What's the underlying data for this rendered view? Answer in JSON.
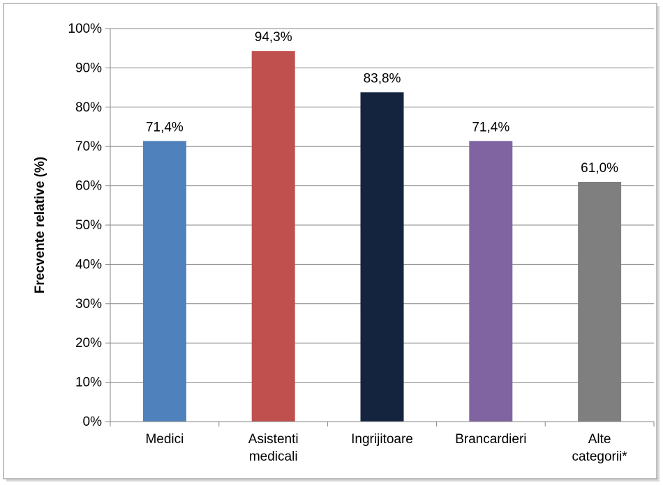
{
  "chart_data": {
    "type": "bar",
    "categories": [
      [
        "Medici"
      ],
      [
        "Asistenti",
        "medicali"
      ],
      [
        "Ingrijitoare"
      ],
      [
        "Brancardieri"
      ],
      [
        "Alte",
        "categorii*"
      ]
    ],
    "values": [
      71.4,
      94.3,
      83.8,
      71.4,
      61.0
    ],
    "data_labels": [
      "71,4%",
      "94,3%",
      "83,8%",
      "71,4%",
      "61,0%"
    ],
    "colors": [
      "#4F81BD",
      "#C0504D",
      "#14243F",
      "#8064A2",
      "#7F7F7F"
    ],
    "ylabel": "Frecvente relative (%)",
    "ylim": [
      0,
      100
    ],
    "yticks": [
      0,
      10,
      20,
      30,
      40,
      50,
      60,
      70,
      80,
      90,
      100
    ],
    "ytick_labels": [
      "0%",
      "10%",
      "20%",
      "30%",
      "40%",
      "50%",
      "60%",
      "70%",
      "80%",
      "90%",
      "100%"
    ],
    "grid": true,
    "legend": "none"
  }
}
